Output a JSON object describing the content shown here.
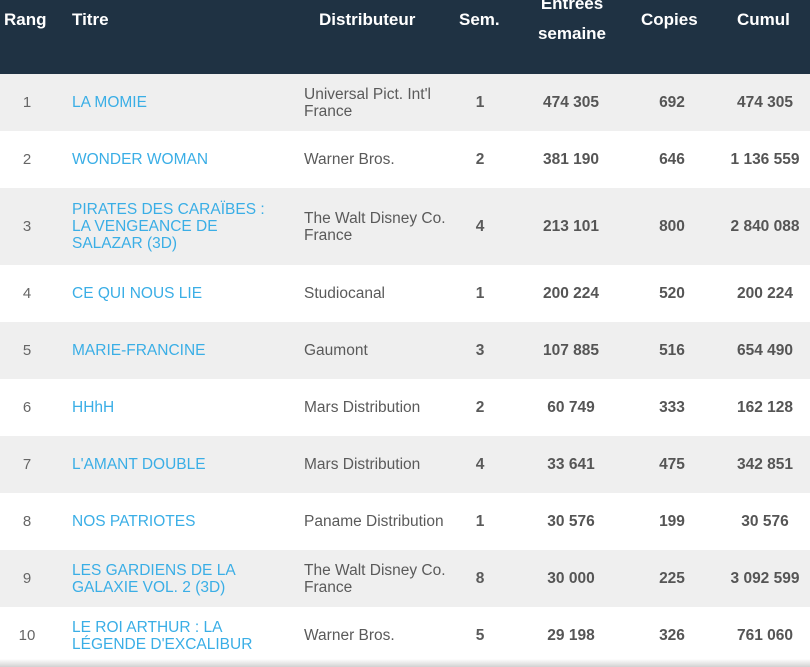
{
  "header": {
    "rang": "Rang",
    "titre": "Titre",
    "distributeur": "Distributeur",
    "sem": "Sem.",
    "entrees_line1": "Entrées",
    "entrees_line2": "semaine",
    "copies": "Copies",
    "cumul": "Cumul"
  },
  "colors": {
    "header_bg": "#1f3243",
    "link": "#3aaee6",
    "row_alt": "#efefef"
  },
  "rows": [
    {
      "rang": "1",
      "titre": "LA MOMIE",
      "distributeur": "Universal Pict. Int'l France",
      "sem": "1",
      "entrees": "474 305",
      "copies": "692",
      "cumul": "474 305"
    },
    {
      "rang": "2",
      "titre": "WONDER WOMAN",
      "distributeur": "Warner Bros.",
      "sem": "2",
      "entrees": "381 190",
      "copies": "646",
      "cumul": "1 136 559"
    },
    {
      "rang": "3",
      "titre": "PIRATES DES CARAÏBES : LA VENGEANCE DE SALAZAR (3D)",
      "distributeur": "The Walt Disney Co. France",
      "sem": "4",
      "entrees": "213 101",
      "copies": "800",
      "cumul": "2 840 088"
    },
    {
      "rang": "4",
      "titre": "CE QUI NOUS LIE",
      "distributeur": "Studiocanal",
      "sem": "1",
      "entrees": "200 224",
      "copies": "520",
      "cumul": "200 224"
    },
    {
      "rang": "5",
      "titre": "MARIE-FRANCINE",
      "distributeur": "Gaumont",
      "sem": "3",
      "entrees": "107 885",
      "copies": "516",
      "cumul": "654 490"
    },
    {
      "rang": "6",
      "titre": "HHhH",
      "distributeur": "Mars Distribution",
      "sem": "2",
      "entrees": "60 749",
      "copies": "333",
      "cumul": "162 128"
    },
    {
      "rang": "7",
      "titre": "L'AMANT DOUBLE",
      "distributeur": "Mars Distribution",
      "sem": "4",
      "entrees": "33 641",
      "copies": "475",
      "cumul": "342 851"
    },
    {
      "rang": "8",
      "titre": "NOS PATRIOTES",
      "distributeur": "Paname Distribution",
      "sem": "1",
      "entrees": "30 576",
      "copies": "199",
      "cumul": "30 576"
    },
    {
      "rang": "9",
      "titre": "LES GARDIENS DE LA GALAXIE VOL. 2 (3D)",
      "distributeur": "The Walt Disney Co. France",
      "sem": "8",
      "entrees": "30 000",
      "copies": "225",
      "cumul": "3 092 599"
    },
    {
      "rang": "10",
      "titre": "LE ROI ARTHUR : LA LÉGENDE D'EXCALIBUR",
      "distributeur": "Warner Bros.",
      "sem": "5",
      "entrees": "29 198",
      "copies": "326",
      "cumul": "761 060"
    }
  ]
}
